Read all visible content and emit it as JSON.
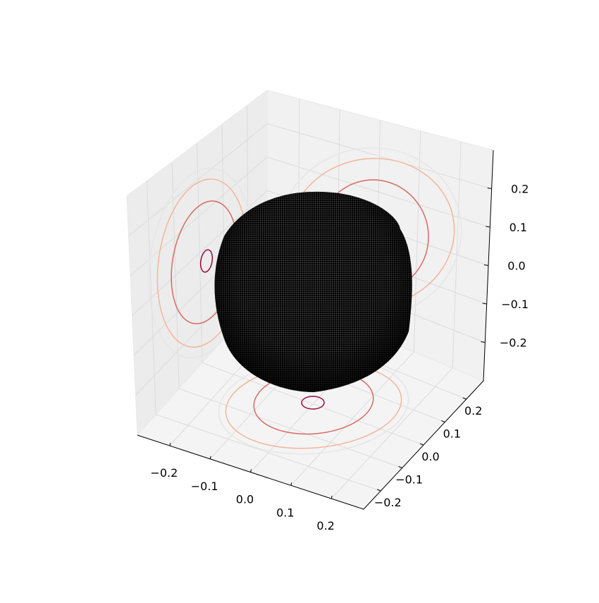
{
  "chart_data": {
    "type": "3d-surface",
    "title": "",
    "surface": {
      "shape": "rounded cube",
      "color": "#000000",
      "wireframe": true
    },
    "axes": {
      "x": {
        "range": [
          -0.28,
          0.28
        ],
        "ticks": [
          -0.2,
          -0.1,
          0.0,
          0.1,
          0.2
        ],
        "tick_labels": [
          "−0.2",
          "−0.1",
          "0.0",
          "0.1",
          "0.2"
        ],
        "label": ""
      },
      "y": {
        "range": [
          -0.28,
          0.28
        ],
        "ticks": [
          -0.2,
          -0.1,
          0.0,
          0.1,
          0.2
        ],
        "tick_labels": [
          "−0.2",
          "−0.1",
          "0.0",
          "0.1",
          "0.2"
        ],
        "label": ""
      },
      "z": {
        "range": [
          -0.3,
          0.3
        ],
        "ticks": [
          -0.2,
          -0.1,
          0.0,
          0.1,
          0.2
        ],
        "tick_labels": [
          "−0.2",
          "−0.1",
          "0.0",
          "0.1",
          "0.2"
        ],
        "label": ""
      }
    },
    "grid": true,
    "contour_projections": {
      "planes": [
        "z-floor",
        "x-wall",
        "y-wall"
      ],
      "level_colors": [
        "#e6e6e6",
        "#f4b59b",
        "#d66b61",
        "#960b40"
      ]
    }
  }
}
